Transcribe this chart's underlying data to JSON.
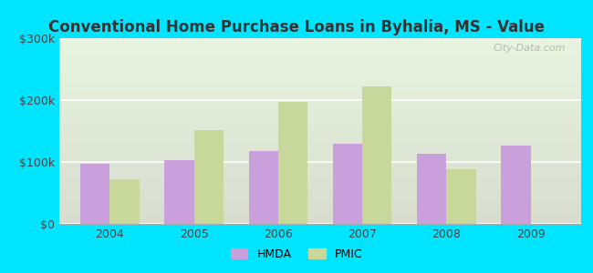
{
  "title": "Conventional Home Purchase Loans in Byhalia, MS - Value",
  "years": [
    2004,
    2005,
    2006,
    2007,
    2008,
    2009
  ],
  "hmda_values": [
    97000,
    103000,
    118000,
    130000,
    113000,
    127000
  ],
  "pmic_values": [
    72000,
    152000,
    197000,
    222000,
    88000,
    null
  ],
  "hmda_color": "#c9a0dc",
  "pmic_color": "#c8d89a",
  "background_color": "#00e5ff",
  "plot_bg_top": "#d8ddd0",
  "plot_bg_bottom": "#e8f5e0",
  "ylim": [
    0,
    300000
  ],
  "yticks": [
    0,
    100000,
    200000,
    300000
  ],
  "ytick_labels": [
    "$0",
    "$100k",
    "$200k",
    "$300k"
  ],
  "bar_width": 0.35,
  "title_fontsize": 12,
  "watermark": "City-Data.com"
}
